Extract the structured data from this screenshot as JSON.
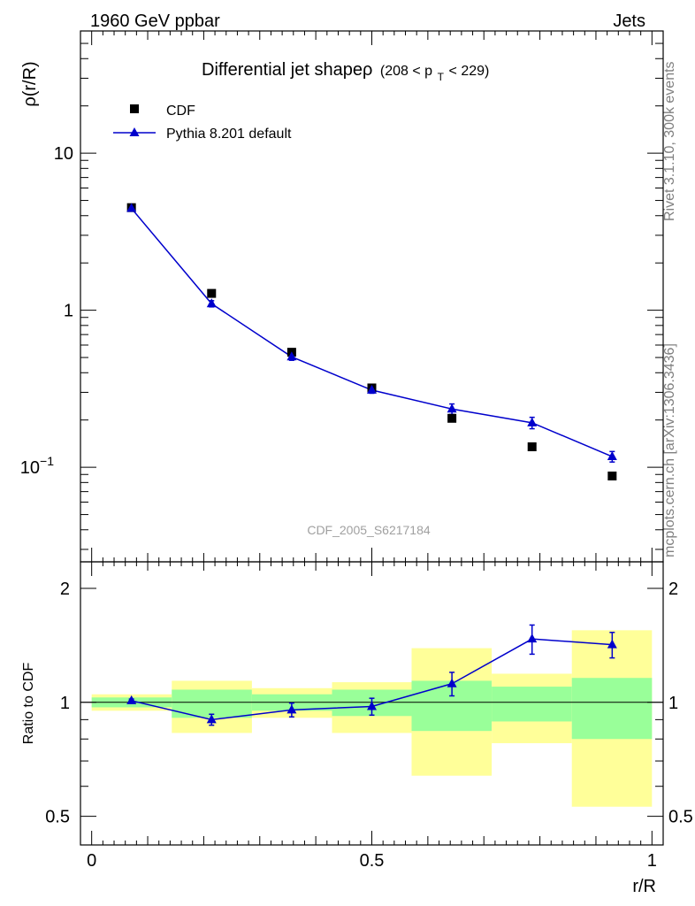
{
  "header": {
    "left": "1960 GeV ppbar",
    "right": "Jets"
  },
  "side_labels": {
    "rivet": "Rivet 3.1.10,  300k events",
    "mcplots": "mcplots.cern.ch [arXiv:1306.3436]"
  },
  "watermark": "CDF_2005_S6217184",
  "colors": {
    "mc": "#0000cc",
    "data": "#000000",
    "band_inner": "#99ff99",
    "band_outer": "#ffff99"
  },
  "chart_data": [
    {
      "type": "scatter",
      "title": "Differential jet shapeρ",
      "title_suffix": "(208 < p",
      "title_sub": "T",
      "title_end": " < 229)",
      "ylabel": "ρ(r/R)",
      "yscale": "log",
      "ylim": [
        0.025,
        60
      ],
      "xlim": [
        -0.02,
        1.02
      ],
      "yticks": [
        {
          "value": 10,
          "label": "10"
        },
        {
          "value": 1,
          "label": "1"
        },
        {
          "value": 0.1,
          "label": "10",
          "exp": "−1"
        }
      ],
      "legend": [
        {
          "name": "CDF",
          "marker": "square"
        },
        {
          "name": "Pythia 8.201 default",
          "marker": "triangle-line"
        }
      ],
      "series": [
        {
          "name": "CDF",
          "x": [
            0.071,
            0.214,
            0.357,
            0.5,
            0.643,
            0.786,
            0.929
          ],
          "y": [
            4.5,
            1.28,
            0.54,
            0.32,
            0.205,
            0.135,
            0.088
          ]
        },
        {
          "name": "Pythia 8.201 default",
          "x": [
            0.071,
            0.214,
            0.357,
            0.5,
            0.643,
            0.786,
            0.929
          ],
          "y": [
            4.45,
            1.1,
            0.505,
            0.31,
            0.235,
            0.192,
            0.117
          ],
          "err": [
            0.15,
            0.05,
            0.025,
            0.014,
            0.018,
            0.016,
            0.009
          ]
        }
      ]
    },
    {
      "type": "scatter",
      "ylabel": "Ratio to CDF",
      "xlabel": "r/R",
      "ylim": [
        0.42,
        2.35
      ],
      "xlim": [
        -0.02,
        1.02
      ],
      "yticks": [
        {
          "value": 2,
          "label": "2"
        },
        {
          "value": 1,
          "label": "1"
        },
        {
          "value": 0.5,
          "label": "0.5"
        }
      ],
      "xticks": [
        {
          "value": 0,
          "label": "0"
        },
        {
          "value": 0.5,
          "label": "0.5"
        },
        {
          "value": 1,
          "label": "1"
        }
      ],
      "bands": [
        {
          "x0": 0.0,
          "x1": 0.143,
          "inner": [
            0.97,
            1.03
          ],
          "outer": [
            0.95,
            1.05
          ]
        },
        {
          "x0": 0.143,
          "x1": 0.286,
          "inner": [
            0.91,
            1.08
          ],
          "outer": [
            0.83,
            1.14
          ]
        },
        {
          "x0": 0.286,
          "x1": 0.429,
          "inner": [
            0.95,
            1.05
          ],
          "outer": [
            0.91,
            1.09
          ]
        },
        {
          "x0": 0.429,
          "x1": 0.571,
          "inner": [
            0.92,
            1.08
          ],
          "outer": [
            0.83,
            1.13
          ]
        },
        {
          "x0": 0.571,
          "x1": 0.714,
          "inner": [
            0.84,
            1.14
          ],
          "outer": [
            0.64,
            1.39
          ]
        },
        {
          "x0": 0.714,
          "x1": 0.857,
          "inner": [
            0.89,
            1.1
          ],
          "outer": [
            0.78,
            1.19
          ]
        },
        {
          "x0": 0.857,
          "x1": 1.0,
          "inner": [
            0.8,
            1.16
          ],
          "outer": [
            0.53,
            1.55
          ]
        }
      ],
      "series": [
        {
          "name": "Pythia 8.201 default",
          "x": [
            0.071,
            0.214,
            0.357,
            0.5,
            0.643,
            0.786,
            0.929
          ],
          "y": [
            1.01,
            0.9,
            0.955,
            0.975,
            1.12,
            1.47,
            1.42
          ],
          "err": [
            0.01,
            0.03,
            0.04,
            0.05,
            0.08,
            0.13,
            0.11
          ]
        }
      ]
    }
  ]
}
